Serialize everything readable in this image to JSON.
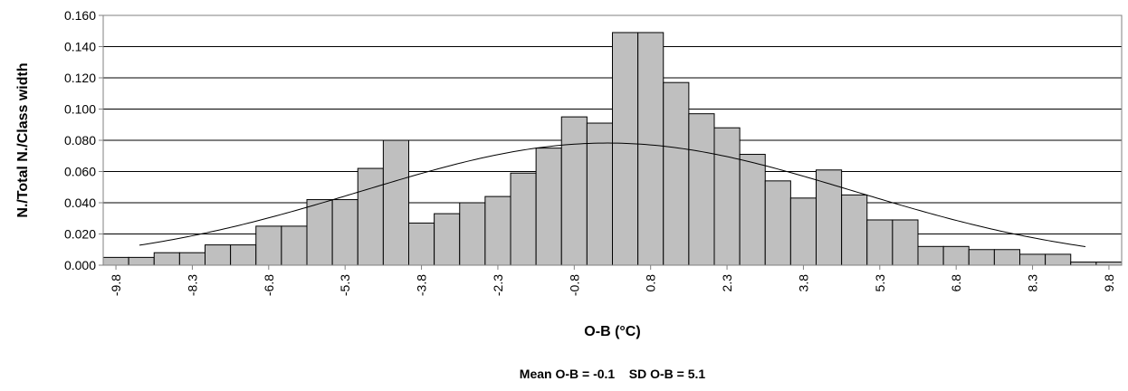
{
  "chart_data": {
    "type": "bar",
    "subtype": "histogram-with-normal-curve",
    "xlabel": "O-B (°C)",
    "ylabel": "N./Total N./Class width",
    "xlim": [
      -10.55,
      10.55
    ],
    "ylim": [
      0,
      0.16
    ],
    "yticks": [
      "0.000",
      "0.020",
      "0.040",
      "0.060",
      "0.080",
      "0.100",
      "0.120",
      "0.140",
      "0.160"
    ],
    "xticks": [
      "-9.8",
      "-8.3",
      "-6.8",
      "-5.3",
      "-3.8",
      "-2.3",
      "-0.8",
      "0.8",
      "2.3",
      "3.8",
      "5.3",
      "6.8",
      "8.3",
      "9.8"
    ],
    "grid": "horizontal",
    "bar_color": "#bfbfbf",
    "categories": [
      "-9.8",
      "-9.3",
      "-8.8",
      "-8.3",
      "-7.8",
      "-7.3",
      "-6.8",
      "-6.3",
      "-5.8",
      "-5.3",
      "-4.8",
      "-4.3",
      "-3.8",
      "-3.3",
      "-2.8",
      "-2.3",
      "-1.8",
      "-1.3",
      "-0.8",
      "-0.3",
      "0.3",
      "0.8",
      "1.3",
      "1.8",
      "2.3",
      "2.8",
      "3.3",
      "3.8",
      "4.3",
      "4.8",
      "5.3",
      "5.8",
      "6.3",
      "6.8",
      "7.3",
      "7.8",
      "8.3",
      "8.8",
      "9.3",
      "9.8"
    ],
    "values": [
      0.005,
      0.005,
      0.008,
      0.008,
      0.013,
      0.013,
      0.025,
      0.025,
      0.042,
      0.042,
      0.062,
      0.08,
      0.027,
      0.033,
      0.04,
      0.044,
      0.059,
      0.075,
      0.095,
      0.091,
      0.149,
      0.149,
      0.117,
      0.097,
      0.088,
      0.071,
      0.054,
      0.043,
      0.061,
      0.045,
      0.029,
      0.029,
      0.012,
      0.012,
      0.01,
      0.01,
      0.007,
      0.007,
      0.002,
      0.002
    ],
    "curve": {
      "type": "normal",
      "mean": -0.1,
      "sd": 5.1,
      "x_range": [
        -9.8,
        9.8
      ]
    }
  },
  "annotation": "Mean O-B = -0.1    SD O-B = 5.1"
}
